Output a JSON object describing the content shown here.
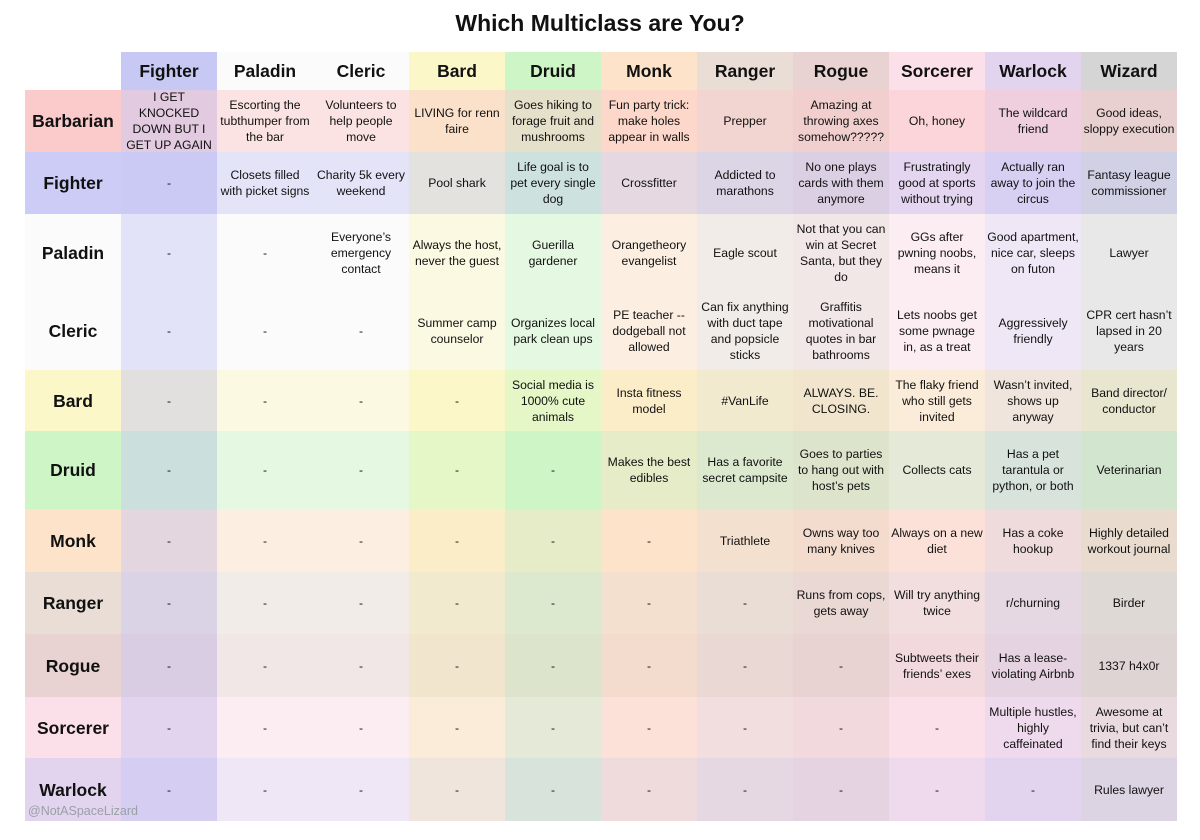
{
  "title": "Which Multiclass are You?",
  "watermark": "@NotASpaceLizard",
  "columns": [
    {
      "name": "Fighter",
      "color": "#c8c8f4"
    },
    {
      "name": "Paladin",
      "color": "#fbfbfb"
    },
    {
      "name": "Cleric",
      "color": "#fbfbfb"
    },
    {
      "name": "Bard",
      "color": "#fbf7c8"
    },
    {
      "name": "Druid",
      "color": "#cef5c6"
    },
    {
      "name": "Monk",
      "color": "#fde3c9"
    },
    {
      "name": "Ranger",
      "color": "#e9ddd5"
    },
    {
      "name": "Rogue",
      "color": "#e9d2d2"
    },
    {
      "name": "Sorcerer",
      "color": "#fbdfe9"
    },
    {
      "name": "Warlock",
      "color": "#e2d3ef"
    },
    {
      "name": "Wizard",
      "color": "#d5d5d5"
    }
  ],
  "rows": [
    {
      "name": "Barbarian",
      "color": "#fbcbcb",
      "cells": [
        "I GET KNOCKED DOWN BUT I GET UP AGAIN",
        "Escorting the tubthumper from the bar",
        "Volunteers to help people move",
        "LIVING for renn faire",
        "Goes hiking to forage fruit and mushrooms",
        "Fun party trick: make holes appear in walls",
        "Prepper",
        "Amazing at throwing axes somehow?????",
        "Oh, honey",
        "The wildcard friend",
        "Good ideas, sloppy execution"
      ]
    },
    {
      "name": "Fighter",
      "color": "#ccccf6",
      "cells": [
        "-",
        "Closets filled with picket signs",
        "Charity 5k every weekend",
        "Pool shark",
        "Life goal is to pet every single dog",
        "Crossfitter",
        "Addicted to marathons",
        "No one plays cards with them anymore",
        "Frustratingly good at sports without trying",
        "Actually ran away to join the circus",
        "Fantasy league commissioner"
      ]
    },
    {
      "name": "Paladin",
      "color": "#fbfbfb",
      "cells": [
        "-",
        "-",
        "Everyone’s emergency contact",
        "Always the host, never the guest",
        "Guerilla gardener",
        "Orangetheory evangelist",
        "Eagle scout",
        "Not that you can win at Secret Santa, but they do",
        "GGs after pwning noobs, means it",
        "Good apartment, nice car, sleeps on futon",
        "Lawyer"
      ]
    },
    {
      "name": "Cleric",
      "color": "#fbfbfb",
      "cells": [
        "-",
        "-",
        "-",
        "Summer camp counselor",
        "Organizes local park clean ups",
        "PE teacher -- dodgeball not allowed",
        "Can fix anything with duct tape and popsicle sticks",
        "Graffitis motivational quotes in bar bathrooms",
        "Lets noobs get some pwnage in, as a treat",
        "Aggressively friendly",
        "CPR cert hasn’t lapsed in 20 years"
      ]
    },
    {
      "name": "Bard",
      "color": "#fbf7c8",
      "cells": [
        "-",
        "-",
        "-",
        "-",
        "Social media is 1000% cute animals",
        "Insta fitness model",
        "#VanLife",
        "ALWAYS. BE. CLOSING.",
        "The flaky friend who still gets invited",
        "Wasn’t invited, shows up anyway",
        "Band director/ conductor"
      ]
    },
    {
      "name": "Druid",
      "color": "#cef5c6",
      "cells": [
        "-",
        "-",
        "-",
        "-",
        "-",
        "Makes the best edibles",
        "Has a favorite secret campsite",
        "Goes to parties to hang out with host’s pets",
        "Collects cats",
        "Has a pet tarantula or python, or both",
        "Veterinarian"
      ]
    },
    {
      "name": "Monk",
      "color": "#fde3c9",
      "cells": [
        "-",
        "-",
        "-",
        "-",
        "-",
        "-",
        "Triathlete",
        "Owns way too many knives",
        "Always on a new diet",
        "Has a coke hookup",
        "Highly detailed workout journal"
      ]
    },
    {
      "name": "Ranger",
      "color": "#e9ddd5",
      "cells": [
        "-",
        "-",
        "-",
        "-",
        "-",
        "-",
        "-",
        "Runs from cops, gets away",
        "Will try anything twice",
        "r/churning",
        "Birder"
      ]
    },
    {
      "name": "Rogue",
      "color": "#e9d2d2",
      "cells": [
        "-",
        "-",
        "-",
        "-",
        "-",
        "-",
        "-",
        "-",
        "Subtweets their friends’ exes",
        "Has a lease-violating Airbnb",
        "1337 h4x0r"
      ]
    },
    {
      "name": "Sorcerer",
      "color": "#fbdfe9",
      "cells": [
        "-",
        "-",
        "-",
        "-",
        "-",
        "-",
        "-",
        "-",
        "-",
        "Multiple hustles, highly caffeinated",
        "Awesome at trivia, but can’t find their keys"
      ]
    },
    {
      "name": "Warlock",
      "color": "#e2d3ef",
      "cells": [
        "-",
        "-",
        "-",
        "-",
        "-",
        "-",
        "-",
        "-",
        "-",
        "-",
        "Rules lawyer"
      ]
    }
  ]
}
